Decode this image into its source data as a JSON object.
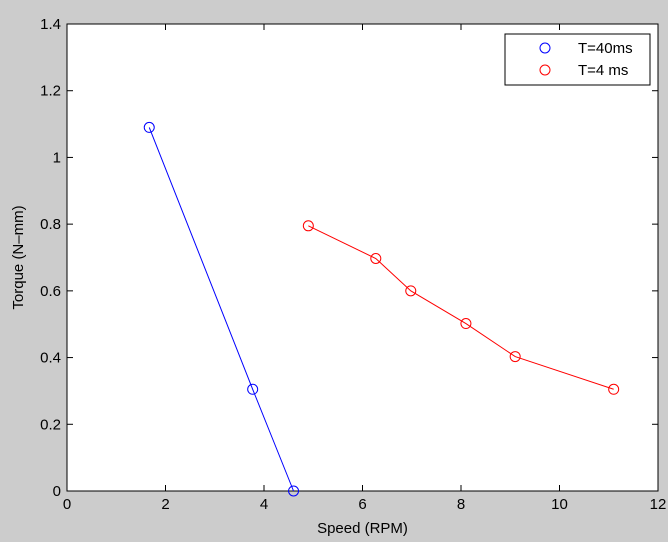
{
  "chart_data": {
    "type": "line",
    "xlabel": "Speed (RPM)",
    "ylabel": "Torque (N–mm)",
    "xlim": [
      0,
      12
    ],
    "ylim": [
      0,
      1.4
    ],
    "x_ticks": [
      0,
      2,
      4,
      6,
      8,
      10,
      12
    ],
    "y_ticks": [
      0,
      0.2,
      0.4,
      0.6,
      0.8,
      1,
      1.2,
      1.4
    ],
    "x_tick_labels": [
      "0",
      "2",
      "4",
      "6",
      "8",
      "10",
      "12"
    ],
    "y_tick_labels": [
      "0",
      "0.2",
      "0.4",
      "0.6",
      "0.8",
      "1",
      "1.2",
      "1.4"
    ],
    "grid": false,
    "legend_position": "top-right",
    "series": [
      {
        "name": "T=40ms",
        "color": "#0000ff",
        "marker": "circle",
        "points": [
          {
            "x": 1.67,
            "y": 1.09
          },
          {
            "x": 3.77,
            "y": 0.305
          },
          {
            "x": 4.6,
            "y": 0.0
          }
        ]
      },
      {
        "name": "T=4 ms",
        "color": "#ff0000",
        "marker": "circle",
        "points": [
          {
            "x": 4.9,
            "y": 0.795
          },
          {
            "x": 6.27,
            "y": 0.697
          },
          {
            "x": 6.98,
            "y": 0.6
          },
          {
            "x": 8.1,
            "y": 0.502
          },
          {
            "x": 9.1,
            "y": 0.403
          },
          {
            "x": 11.1,
            "y": 0.305
          }
        ]
      }
    ]
  }
}
